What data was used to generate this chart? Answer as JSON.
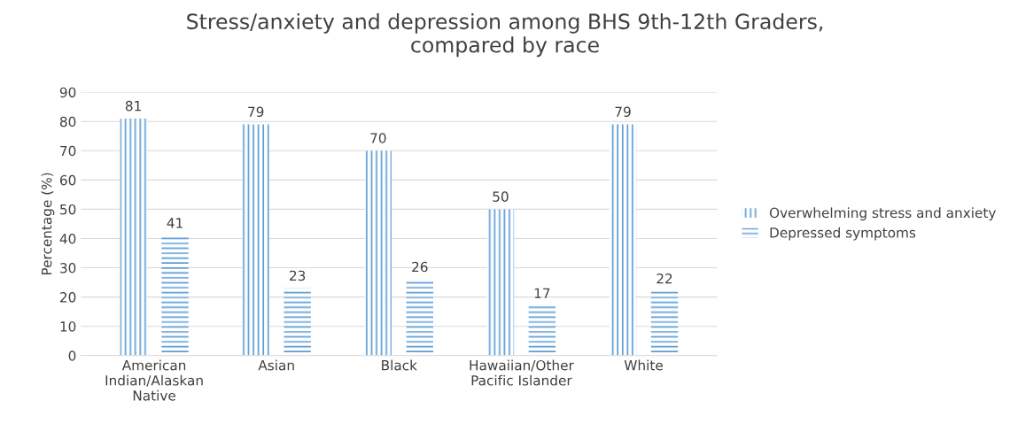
{
  "chart_data": {
    "type": "bar",
    "title": "Stress/anxiety and depression among BHS 9th-12th Graders,\ncompared by race",
    "ylabel": "Percentage (%)",
    "categories": [
      "American\nIndian/Alaskan\nNative",
      "Asian",
      "Black",
      "Hawaiian/Other\nPacific Islander",
      "White"
    ],
    "series": [
      {
        "name": "Overwhelming stress and anxiety",
        "color": "#5b9bd5",
        "values": [
          81,
          79,
          70,
          50,
          79
        ]
      },
      {
        "name": "Depressed symptoms",
        "color": "#5b9bd5",
        "values": [
          41,
          23,
          26,
          17,
          22
        ]
      }
    ],
    "ylim": [
      0,
      90
    ],
    "yticks": [
      0,
      10,
      20,
      30,
      40,
      50,
      60,
      70,
      80,
      90
    ],
    "grid": "y",
    "legend": "right",
    "data_labels": true
  }
}
